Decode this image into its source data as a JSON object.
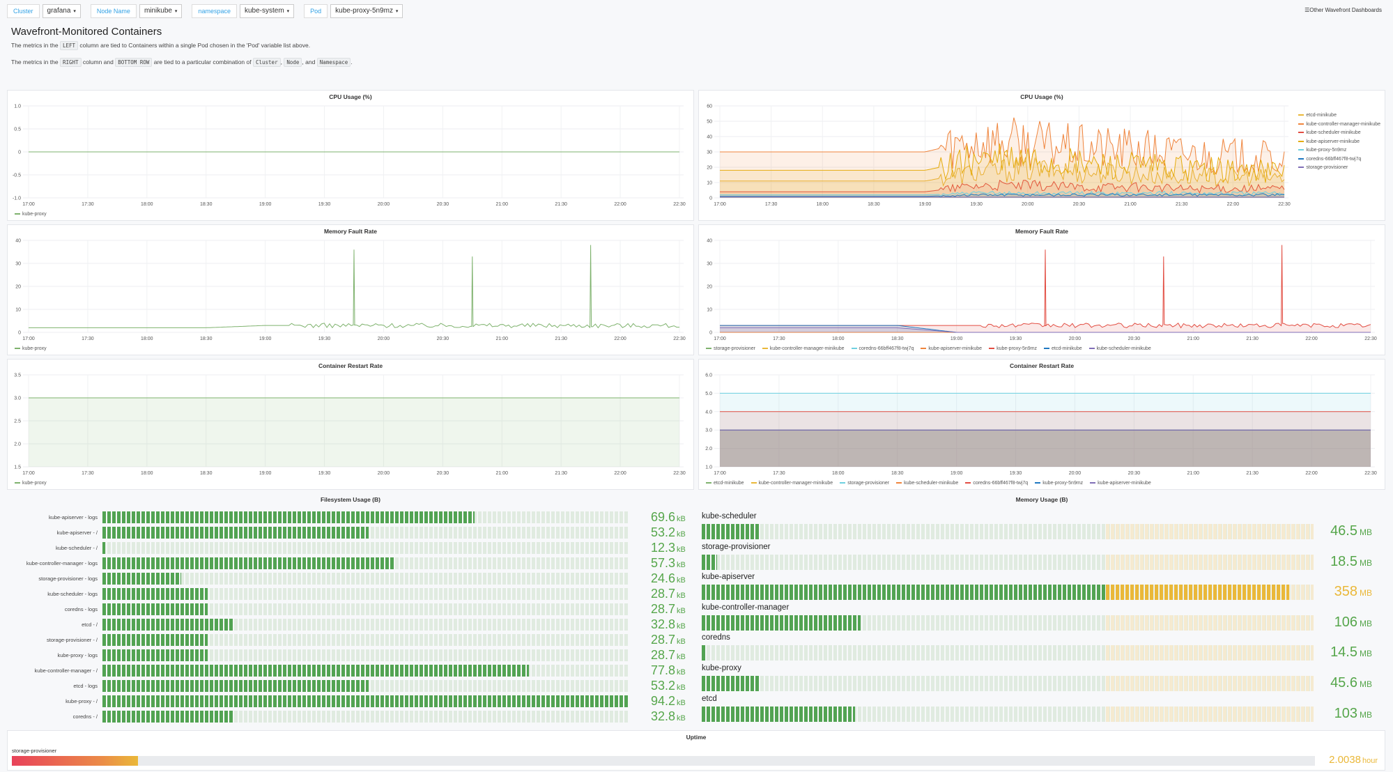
{
  "variables": [
    {
      "label": "Cluster",
      "value": "grafana"
    },
    {
      "label": "Node Name",
      "value": "minikube"
    },
    {
      "label": "namespace",
      "value": "kube-system"
    },
    {
      "label": "Pod",
      "value": "kube-proxy-5n9mz"
    }
  ],
  "other_dashboards": "Other Wavefront Dashboards",
  "header": {
    "title": "Wavefront-Monitored Containers",
    "line1": {
      "a": "The metrics in the",
      "code1": "LEFT",
      "b": "column are tied to Containers within a single Pod chosen in the 'Pod' variable list above."
    },
    "line2": {
      "a": "The metrics in the",
      "code1": "RIGHT",
      "b": "column and",
      "code2": "BOTTOM ROW",
      "c": "are tied to a particular combination of",
      "code3": "Cluster",
      "d": ",",
      "code4": "Node",
      "e": ", and",
      "code5": "Namespace",
      "f": "."
    }
  },
  "time_ticks": [
    "17:00",
    "17:30",
    "18:00",
    "18:30",
    "19:00",
    "19:30",
    "20:00",
    "20:30",
    "21:00",
    "21:30",
    "22:00",
    "22:30"
  ],
  "colors": {
    "green": "#7eb26d",
    "orange": "#ef843c",
    "yellow": "#eab839",
    "red": "#e24d42",
    "blue": "#6ed0e0",
    "purple": "#806eb7",
    "darkblue": "#1f78c1",
    "gauge_green": "#56a64b",
    "gauge_yellow": "#eab839"
  },
  "chart_data": [
    {
      "type": "line",
      "title": "CPU Usage (%)",
      "panel": "left",
      "y_ticks": [
        "1.0",
        "0.5",
        "0",
        "-0.5",
        "-1.0"
      ],
      "ylim": [
        -1,
        1
      ],
      "series": [
        {
          "name": "kube-proxy",
          "color": "#7eb26d",
          "values": [
            0,
            0,
            0,
            0,
            0,
            0,
            0,
            0,
            0,
            0,
            0,
            0
          ]
        }
      ]
    },
    {
      "type": "area",
      "title": "CPU Usage (%)",
      "panel": "right",
      "y_ticks": [
        "60",
        "50",
        "40",
        "30",
        "20",
        "10",
        "0"
      ],
      "ylim": [
        0,
        60
      ],
      "series": [
        {
          "name": "etcd-minikube",
          "color": "#eab839",
          "values": [
            11,
            11,
            11,
            11,
            11,
            17,
            19,
            17,
            16,
            14,
            14,
            13
          ]
        },
        {
          "name": "kube-controller-manager-minikube",
          "color": "#ef843c",
          "values": [
            30,
            30,
            30,
            30,
            30,
            38,
            36,
            33,
            32,
            29,
            27,
            25
          ]
        },
        {
          "name": "kube-scheduler-minikube",
          "color": "#e24d42",
          "values": [
            4,
            4,
            4,
            4,
            4,
            8,
            8,
            7,
            7,
            6,
            6,
            6
          ]
        },
        {
          "name": "kube-apiserver-minikube",
          "color": "#e5ac0e",
          "values": [
            18,
            18,
            18,
            18,
            18,
            25,
            24,
            22,
            21,
            19,
            18,
            17
          ]
        },
        {
          "name": "kube-proxy-5n9mz",
          "color": "#6ed0e0",
          "values": [
            2,
            2,
            2,
            2,
            2,
            3,
            3,
            3,
            3,
            3,
            3,
            3
          ]
        },
        {
          "name": "coredns-66bff467f8-twj7q",
          "color": "#1f78c1",
          "values": [
            1,
            1,
            1,
            1,
            1,
            2,
            2,
            2,
            2,
            2,
            2,
            2
          ]
        },
        {
          "name": "storage-provisioner",
          "color": "#806eb7",
          "values": [
            0.5,
            0.5,
            0.5,
            0.5,
            0.5,
            0.5,
            0.5,
            0.5,
            0.5,
            0.5,
            0.5,
            0.5
          ]
        }
      ]
    },
    {
      "type": "line",
      "title": "Memory Fault Rate",
      "panel": "left",
      "y_ticks": [
        "40",
        "30",
        "20",
        "10",
        "0"
      ],
      "ylim": [
        0,
        40
      ],
      "series": [
        {
          "name": "kube-proxy",
          "color": "#7eb26d",
          "values": [
            2,
            2,
            2,
            2,
            3,
            3,
            3,
            3,
            3,
            3,
            3,
            3
          ]
        }
      ],
      "spikes": [
        {
          "x": "19:45",
          "y": 36
        },
        {
          "x": "20:45",
          "y": 33
        },
        {
          "x": "21:45",
          "y": 38
        }
      ]
    },
    {
      "type": "area",
      "title": "Memory Fault Rate",
      "panel": "right",
      "y_ticks": [
        "40",
        "30",
        "20",
        "10",
        "0"
      ],
      "ylim": [
        0,
        40
      ],
      "series": [
        {
          "name": "storage-provisioner",
          "color": "#7eb26d",
          "values": [
            0,
            0,
            0,
            0,
            0,
            0,
            0,
            0,
            0,
            0,
            0,
            0
          ]
        },
        {
          "name": "kube-controller-manager-minikube",
          "color": "#eab839",
          "values": [
            0,
            0,
            0,
            0,
            0,
            0,
            0,
            0,
            0,
            0,
            0,
            0
          ]
        },
        {
          "name": "coredns-66bff467f8-twj7q",
          "color": "#6ed0e0",
          "values": [
            0,
            0,
            0,
            0,
            0,
            0,
            0,
            0,
            0,
            0,
            0,
            0
          ]
        },
        {
          "name": "kube-apiserver-minikube",
          "color": "#ef843c",
          "values": [
            0,
            0,
            0,
            0,
            0,
            0,
            0,
            0,
            0,
            0,
            0,
            0
          ]
        },
        {
          "name": "kube-proxy-5n9mz",
          "color": "#e24d42",
          "values": [
            3,
            3,
            3,
            3,
            3,
            3,
            3,
            3,
            3,
            3,
            3,
            3
          ]
        },
        {
          "name": "etcd-minikube",
          "color": "#1f78c1",
          "values": [
            3,
            3,
            3,
            3,
            0,
            0,
            0,
            0,
            0,
            0,
            0,
            0
          ]
        },
        {
          "name": "kube-scheduler-minikube",
          "color": "#806eb7",
          "values": [
            2,
            2,
            2,
            2,
            0,
            0,
            0,
            0,
            0,
            0,
            0,
            0
          ]
        }
      ],
      "spikes": [
        {
          "x": "19:45",
          "y": 36
        },
        {
          "x": "20:45",
          "y": 33
        },
        {
          "x": "21:45",
          "y": 38
        }
      ]
    },
    {
      "type": "area",
      "title": "Container Restart Rate",
      "panel": "left",
      "y_ticks": [
        "3.5",
        "3.0",
        "2.5",
        "2.0",
        "1.5"
      ],
      "ylim": [
        1.5,
        3.5
      ],
      "series": [
        {
          "name": "kube-proxy",
          "color": "#7eb26d",
          "values": [
            3,
            3,
            3,
            3,
            3,
            3,
            3,
            3,
            3,
            3,
            3,
            3
          ]
        }
      ]
    },
    {
      "type": "area",
      "title": "Container Restart Rate",
      "panel": "right",
      "y_ticks": [
        "6.0",
        "5.0",
        "4.0",
        "3.0",
        "2.0",
        "1.0"
      ],
      "ylim": [
        1,
        6
      ],
      "series": [
        {
          "name": "etcd-minikube",
          "color": "#7eb26d",
          "values": [
            3,
            3,
            3,
            3,
            3,
            3,
            3,
            3,
            3,
            3,
            3,
            3
          ]
        },
        {
          "name": "kube-controller-manager-minikube",
          "color": "#eab839",
          "values": [
            3,
            3,
            3,
            3,
            3,
            3,
            3,
            3,
            3,
            3,
            3,
            3
          ]
        },
        {
          "name": "storage-provisioner",
          "color": "#6ed0e0",
          "values": [
            5,
            5,
            5,
            5,
            5,
            5,
            5,
            5,
            5,
            5,
            5,
            5
          ]
        },
        {
          "name": "kube-scheduler-minikube",
          "color": "#ef843c",
          "values": [
            3,
            3,
            3,
            3,
            3,
            3,
            3,
            3,
            3,
            3,
            3,
            3
          ]
        },
        {
          "name": "coredns-66bff467f8-twj7q",
          "color": "#e24d42",
          "values": [
            4,
            4,
            4,
            4,
            4,
            4,
            4,
            4,
            4,
            4,
            4,
            4
          ]
        },
        {
          "name": "kube-proxy-5n9mz",
          "color": "#1f78c1",
          "values": [
            3,
            3,
            3,
            3,
            3,
            3,
            3,
            3,
            3,
            3,
            3,
            3
          ]
        },
        {
          "name": "kube-apiserver-minikube",
          "color": "#806eb7",
          "values": [
            3,
            3,
            3,
            3,
            3,
            3,
            3,
            3,
            3,
            3,
            3,
            3
          ]
        }
      ]
    },
    {
      "type": "bar",
      "title": "Filesystem Usage (B)",
      "categories": [
        "kube-apiserver - logs",
        "kube-apiserver - /",
        "kube-scheduler - /",
        "kube-controller-manager - logs",
        "storage-provisioner - logs",
        "kube-scheduler - logs",
        "coredns - logs",
        "etcd - /",
        "storage-provisioner - /",
        "kube-proxy - logs",
        "kube-controller-manager - /",
        "etcd - logs",
        "kube-proxy - /",
        "coredns - /"
      ],
      "values": [
        "69.6",
        "53.2",
        "12.3",
        "57.3",
        "24.6",
        "28.7",
        "28.7",
        "32.8",
        "28.7",
        "28.7",
        "77.8",
        "53.2",
        "94.2",
        "32.8"
      ],
      "unit": "kB",
      "fill_fraction": [
        0.706,
        0.505,
        0.005,
        0.556,
        0.15,
        0.2,
        0.2,
        0.25,
        0.2,
        0.2,
        0.81,
        0.505,
        1.0,
        0.25
      ]
    },
    {
      "type": "bar",
      "title": "Memory Usage (B)",
      "categories": [
        "kube-scheduler",
        "storage-provisioner",
        "kube-apiserver",
        "kube-controller-manager",
        "coredns",
        "kube-proxy",
        "etcd"
      ],
      "values": [
        "46.5",
        "18.5",
        "358",
        "106",
        "14.5",
        "45.6",
        "103"
      ],
      "unit": "MB",
      "fill_fraction": [
        0.095,
        0.025,
        0.96,
        0.26,
        0.008,
        0.095,
        0.25
      ],
      "warn_threshold_fraction": 0.661,
      "value_colors": [
        "#56a64b",
        "#56a64b",
        "#eab839",
        "#56a64b",
        "#56a64b",
        "#56a64b",
        "#56a64b"
      ]
    },
    {
      "type": "bar",
      "title": "Uptime",
      "categories": [
        "storage-provisioner"
      ],
      "values": [
        "2.0038"
      ],
      "unit": "hour",
      "fill_fraction": [
        0.097
      ]
    }
  ]
}
